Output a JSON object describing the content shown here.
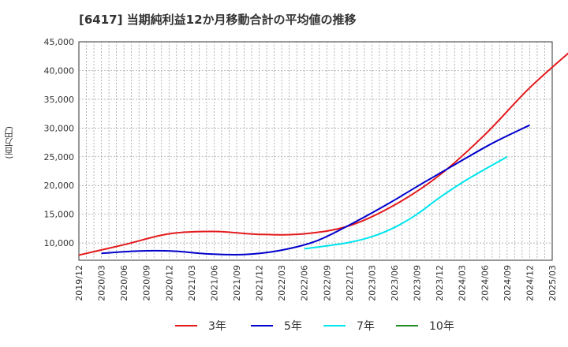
{
  "chart_data": {
    "type": "line",
    "title": "[6417]  当期純利益12か月移動合計の平均値の推移",
    "ylabel": "(百万円)",
    "xlabel": "",
    "ylim": [
      7000,
      45000
    ],
    "yticks": [
      10000,
      15000,
      20000,
      25000,
      30000,
      35000,
      40000,
      45000
    ],
    "ytick_labels": [
      "10,000",
      "15,000",
      "20,000",
      "25,000",
      "30,000",
      "35,000",
      "40,000",
      "45,000"
    ],
    "x_tick_labels": [
      "2019/12",
      "2020/03",
      "2020/06",
      "2020/09",
      "2020/12",
      "2021/03",
      "2021/06",
      "2021/09",
      "2021/12",
      "2022/03",
      "2022/06",
      "2022/09",
      "2022/12",
      "2023/03",
      "2023/06",
      "2023/09",
      "2023/12",
      "2024/03",
      "2024/06",
      "2024/09",
      "2024/12",
      "2025/03"
    ],
    "grid": true,
    "legend_position": "bottom",
    "series": [
      {
        "name": "3年",
        "color": "#e31a1c",
        "start_index": 0,
        "values": [
          7900,
          9700,
          11600,
          12000,
          11500,
          11600,
          13000,
          16600,
          21800,
          28800,
          37000,
          44000
        ]
      },
      {
        "name": "5年",
        "color": "#0000cc",
        "start_index": 1,
        "values": [
          8200,
          8600,
          8600,
          8100,
          8000,
          8700,
          10300,
          13300,
          16700,
          20400,
          24000,
          27500,
          30500
        ]
      },
      {
        "name": "7年",
        "color": "#00e5ee",
        "start_index": 10,
        "values": [
          9000,
          9500,
          10100,
          11100,
          12700,
          15000,
          17900,
          20500,
          22800,
          25000
        ]
      },
      {
        "name": "10年",
        "color": "#228b22",
        "start_index": 0,
        "values": []
      }
    ]
  }
}
